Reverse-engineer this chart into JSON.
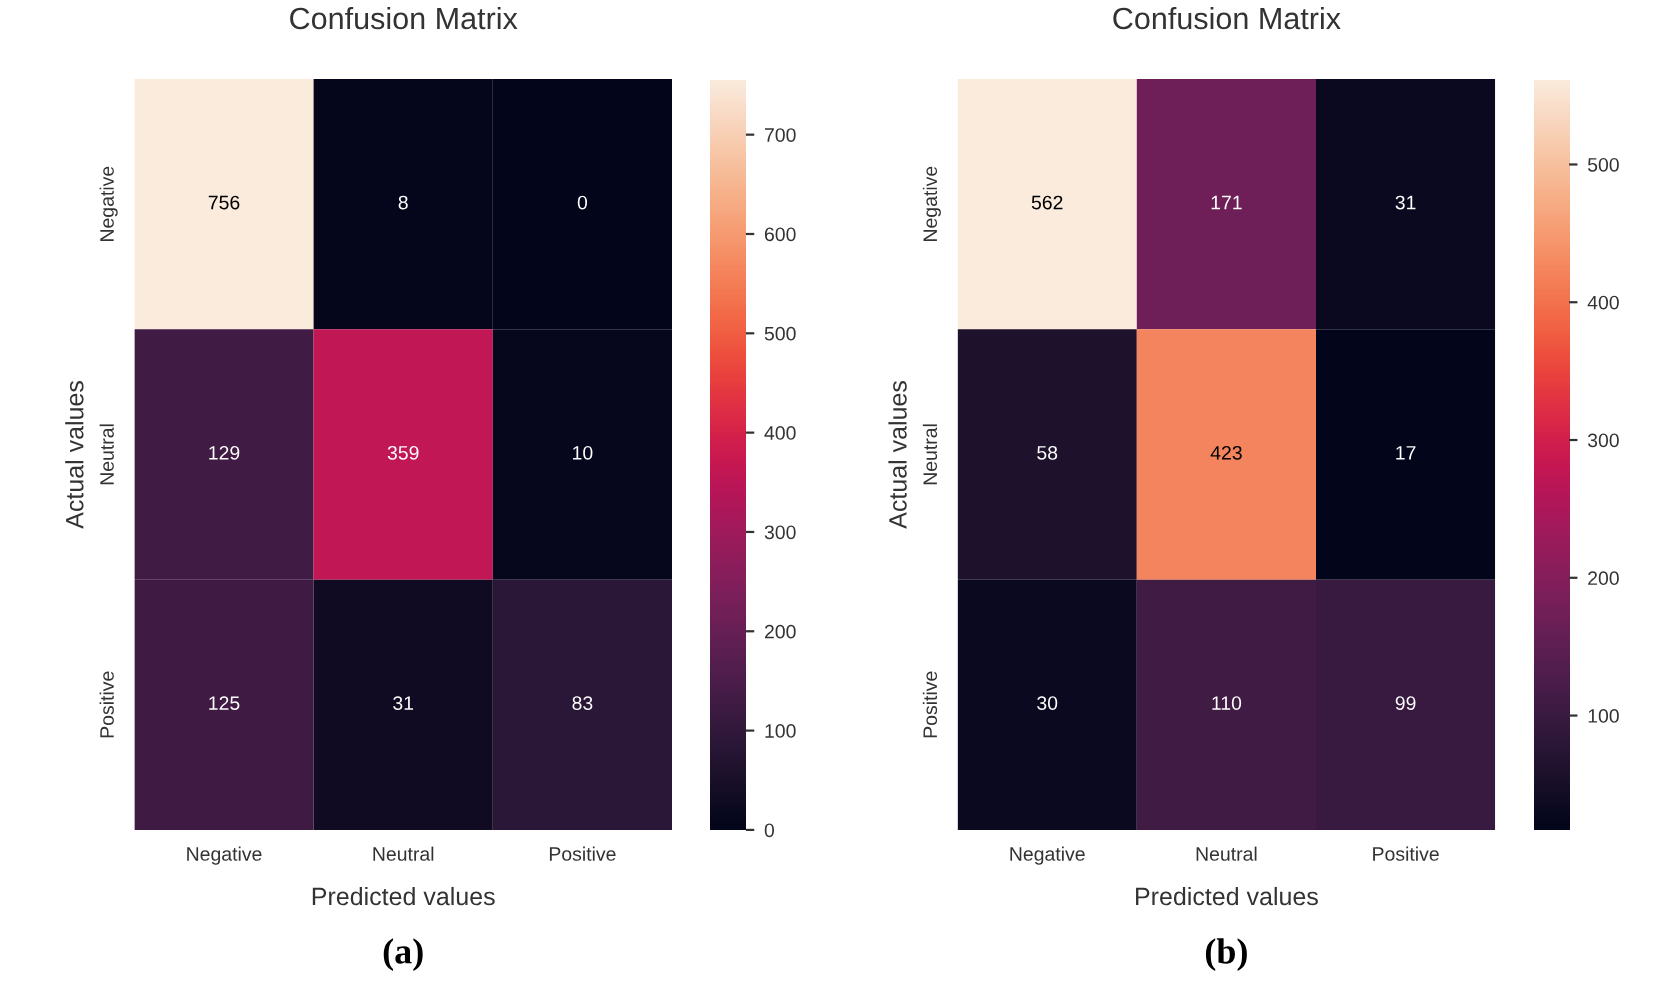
{
  "chart_data": [
    {
      "type": "heatmap",
      "title": "Confusion Matrix",
      "xlabel": "Predicted values",
      "ylabel": "Actual values",
      "categories": [
        "Negative",
        "Neutral",
        "Positive"
      ],
      "y_categories": [
        "Negative",
        "Neutral",
        "Positive"
      ],
      "cells": [
        [
          756,
          8,
          0
        ],
        [
          129,
          359,
          10
        ],
        [
          125,
          31,
          83
        ]
      ],
      "clim": [
        0,
        756
      ],
      "cticks": [
        0,
        100,
        200,
        300,
        400,
        500,
        600,
        700
      ],
      "data_labels": true,
      "annotations": [
        "(a)"
      ]
    },
    {
      "type": "heatmap",
      "title": "Confusion Matrix",
      "xlabel": "Predicted values",
      "ylabel": "Actual values",
      "categories": [
        "Negative",
        "Neutral",
        "Positive"
      ],
      "y_categories": [
        "Negative",
        "Neutral",
        "Positive"
      ],
      "cells": [
        [
          562,
          171,
          31
        ],
        [
          58,
          423,
          17
        ],
        [
          30,
          110,
          99
        ]
      ],
      "clim": [
        17,
        562
      ],
      "cticks": [
        100,
        200,
        300,
        400,
        500
      ],
      "data_labels": true,
      "annotations": [
        "(b)"
      ]
    }
  ]
}
